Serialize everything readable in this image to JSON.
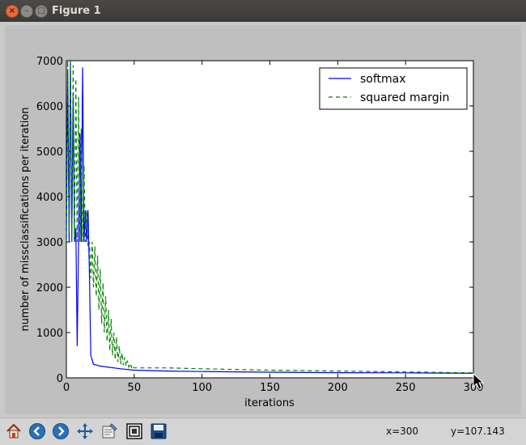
{
  "window": {
    "title": "Figure 1"
  },
  "chart_data": {
    "type": "line",
    "xlabel": "iterations",
    "ylabel": "number of missclassifications per iteration",
    "xlim": [
      0,
      300
    ],
    "ylim": [
      0,
      7000
    ],
    "xticks": [
      0,
      50,
      100,
      150,
      200,
      250,
      300
    ],
    "yticks": [
      0,
      1000,
      2000,
      3000,
      4000,
      5000,
      6000,
      7000
    ],
    "legend_position": "top-right",
    "series": [
      {
        "name": "softmax",
        "style": "solid",
        "color": "#0000ff",
        "x": [
          0,
          1,
          2,
          3,
          4,
          5,
          6,
          7,
          8,
          9,
          10,
          11,
          12,
          13,
          14,
          15,
          16,
          17,
          18,
          20,
          25,
          30,
          40,
          50,
          75,
          100,
          150,
          200,
          250,
          300
        ],
        "y": [
          3000,
          6800,
          3000,
          7000,
          3000,
          6200,
          3000,
          3300,
          700,
          3000,
          5400,
          3000,
          6850,
          3000,
          3700,
          3000,
          3700,
          2300,
          500,
          300,
          260,
          240,
          200,
          170,
          150,
          140,
          125,
          115,
          110,
          100
        ]
      },
      {
        "name": "squared margin",
        "style": "dashed",
        "color": "#008000",
        "x": [
          0,
          1,
          2,
          3,
          4,
          5,
          6,
          7,
          8,
          9,
          10,
          11,
          12,
          13,
          14,
          15,
          16,
          17,
          18,
          19,
          20,
          21,
          22,
          23,
          24,
          25,
          26,
          27,
          28,
          29,
          30,
          31,
          32,
          33,
          34,
          35,
          36,
          37,
          38,
          39,
          40,
          41,
          42,
          43,
          44,
          45,
          46,
          47,
          48,
          49,
          50,
          75,
          100,
          150,
          200,
          250,
          300
        ],
        "y": [
          3000,
          7000,
          3200,
          7000,
          3000,
          6900,
          3100,
          6600,
          3000,
          6200,
          3000,
          5500,
          3000,
          4700,
          3000,
          3700,
          2900,
          3000,
          2200,
          3000,
          2000,
          2900,
          1800,
          2700,
          1500,
          2400,
          1200,
          2100,
          1000,
          1800,
          800,
          1500,
          600,
          1300,
          500,
          1000,
          400,
          900,
          350,
          700,
          300,
          550,
          280,
          450,
          260,
          380,
          240,
          320,
          230,
          280,
          220,
          220,
          200,
          170,
          150,
          130,
          110
        ]
      }
    ]
  },
  "toolbar": {
    "buttons": [
      "home-icon",
      "back-icon",
      "forward-icon",
      "pan-icon",
      "configure-subplots-icon",
      "zoom-to-rect-icon",
      "save-icon"
    ],
    "x_readout": "x=300",
    "y_readout": "y=107.143"
  }
}
